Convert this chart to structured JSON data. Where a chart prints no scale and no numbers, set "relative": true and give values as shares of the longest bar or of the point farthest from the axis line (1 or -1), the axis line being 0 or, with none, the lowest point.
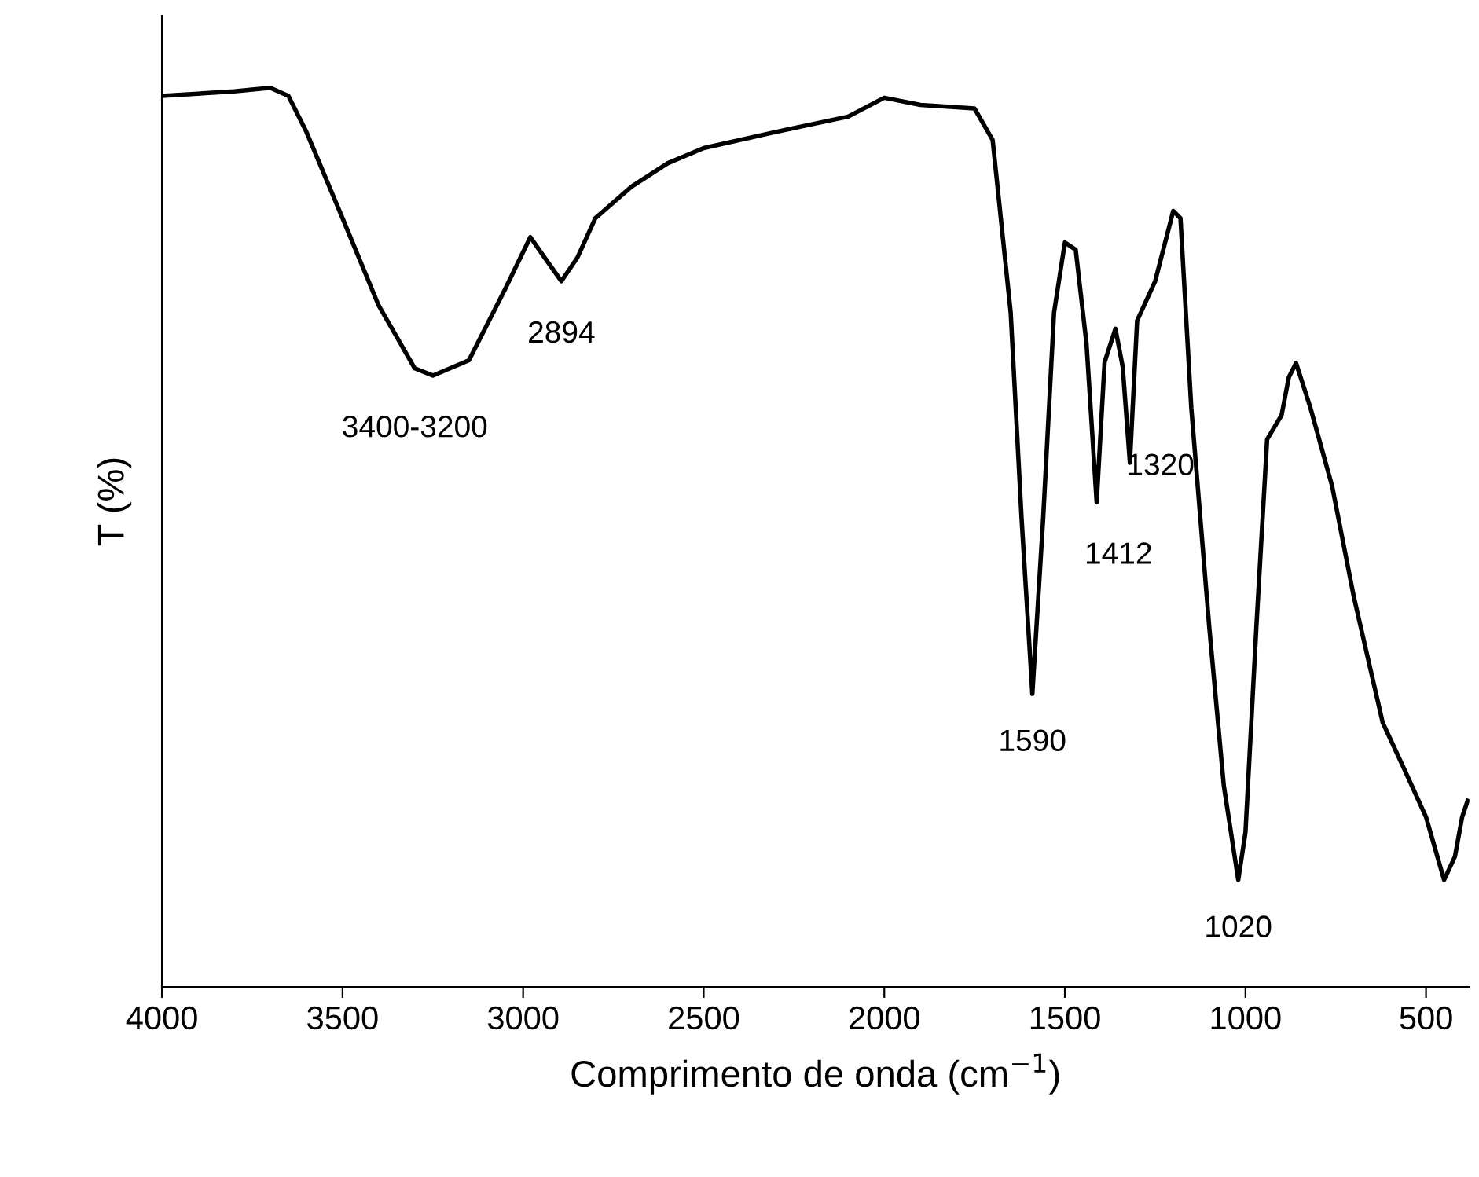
{
  "chart_data": {
    "type": "line",
    "relative": true,
    "xlabel": "Comprimento de onda (cm$^{−1}$)",
    "ylabel": "T (%)",
    "xlim": [
      4000,
      380
    ],
    "xticks": [
      4000,
      3500,
      3000,
      2500,
      2000,
      1500,
      1000,
      500
    ],
    "grid": false,
    "legend": false,
    "marker": "none",
    "line_style": "solid",
    "series": [
      {
        "color": "#000000",
        "x": [
          4000,
          3800,
          3700,
          3650,
          3600,
          3500,
          3400,
          3300,
          3250,
          3150,
          3050,
          2980,
          2940,
          2894,
          2850,
          2800,
          2700,
          2600,
          2500,
          2300,
          2100,
          2000,
          1900,
          1750,
          1700,
          1650,
          1620,
          1590,
          1560,
          1530,
          1500,
          1470,
          1440,
          1412,
          1390,
          1360,
          1340,
          1320,
          1300,
          1250,
          1200,
          1180,
          1150,
          1100,
          1060,
          1020,
          1000,
          970,
          940,
          900,
          880,
          860,
          820,
          760,
          700,
          660,
          620,
          560,
          500,
          450,
          420,
          400,
          385
        ],
        "values": [
          0.991,
          0.996,
          1.0,
          0.991,
          0.951,
          0.855,
          0.758,
          0.688,
          0.68,
          0.697,
          0.776,
          0.834,
          0.811,
          0.785,
          0.811,
          0.855,
          0.89,
          0.916,
          0.933,
          0.951,
          0.968,
          0.989,
          0.981,
          0.977,
          0.942,
          0.75,
          0.522,
          0.326,
          0.522,
          0.75,
          0.828,
          0.82,
          0.715,
          0.539,
          0.695,
          0.732,
          0.69,
          0.583,
          0.741,
          0.785,
          0.863,
          0.855,
          0.644,
          0.399,
          0.224,
          0.119,
          0.172,
          0.399,
          0.609,
          0.636,
          0.678,
          0.694,
          0.644,
          0.557,
          0.434,
          0.364,
          0.294,
          0.242,
          0.189,
          0.119,
          0.145,
          0.189,
          0.207
        ]
      }
    ],
    "annotations": [
      {
        "text": "3400-3200",
        "x": 3300,
        "y": 0.68
      },
      {
        "text": "2894",
        "x": 2894,
        "y": 0.785
      },
      {
        "text": "1590",
        "x": 1590,
        "y": 0.326
      },
      {
        "text": "1412",
        "x": 1412,
        "y": 0.539
      },
      {
        "text": "1320",
        "x": 1320,
        "y": 0.583
      },
      {
        "text": "1020",
        "x": 1020,
        "y": 0.119
      }
    ]
  }
}
